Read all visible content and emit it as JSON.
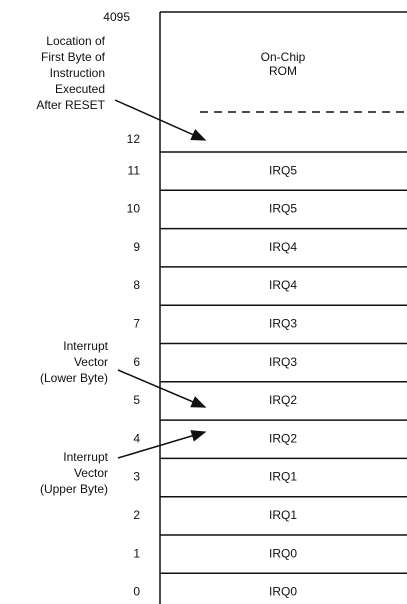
{
  "top_address": "4095",
  "rom": {
    "lines": [
      "On-Chip",
      "ROM"
    ],
    "address": "12"
  },
  "rows": [
    {
      "address": "11",
      "label": "IRQ5"
    },
    {
      "address": "10",
      "label": "IRQ5"
    },
    {
      "address": "9",
      "label": "IRQ4"
    },
    {
      "address": "8",
      "label": "IRQ4"
    },
    {
      "address": "7",
      "label": "IRQ3"
    },
    {
      "address": "6",
      "label": "IRQ3"
    },
    {
      "address": "5",
      "label": "IRQ2"
    },
    {
      "address": "4",
      "label": "IRQ2"
    },
    {
      "address": "3",
      "label": "IRQ1"
    },
    {
      "address": "2",
      "label": "IRQ1"
    },
    {
      "address": "1",
      "label": "IRQ0"
    },
    {
      "address": "0",
      "label": "IRQ0"
    }
  ],
  "annotations": [
    {
      "lines": [
        "Location of",
        "First Byte of",
        "Instruction",
        "Executed",
        "After RESET"
      ]
    },
    {
      "lines": [
        "Interrupt",
        "Vector",
        "(Lower Byte)"
      ]
    },
    {
      "lines": [
        "Interrupt",
        "Vector",
        "(Upper Byte)"
      ]
    }
  ]
}
